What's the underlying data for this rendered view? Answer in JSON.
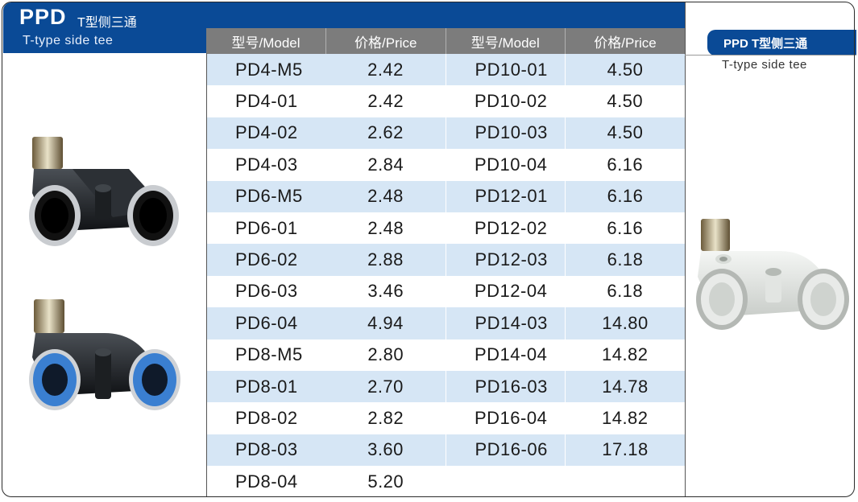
{
  "header": {
    "brand": "PPD",
    "brand_cn": "T型侧三通",
    "subtitle": "T-type side tee"
  },
  "table": {
    "headers": [
      "型号/Model",
      "价格/Price",
      "型号/Model",
      "价格/Price"
    ],
    "rows": [
      [
        "PD4-M5",
        "2.42",
        "PD10-01",
        "4.50"
      ],
      [
        "PD4-01",
        "2.42",
        "PD10-02",
        "4.50"
      ],
      [
        "PD4-02",
        "2.62",
        "PD10-03",
        "4.50"
      ],
      [
        "PD4-03",
        "2.84",
        "PD10-04",
        "6.16"
      ],
      [
        "PD6-M5",
        "2.48",
        "PD12-01",
        "6.16"
      ],
      [
        "PD6-01",
        "2.48",
        "PD12-02",
        "6.16"
      ],
      [
        "PD6-02",
        "2.88",
        "PD12-03",
        "6.18"
      ],
      [
        "PD6-03",
        "3.46",
        "PD12-04",
        "6.18"
      ],
      [
        "PD6-04",
        "4.94",
        "PD14-03",
        "14.80"
      ],
      [
        "PD8-M5",
        "2.80",
        "PD14-04",
        "14.82"
      ],
      [
        "PD8-01",
        "2.70",
        "PD16-03",
        "14.78"
      ],
      [
        "PD8-02",
        "2.82",
        "PD16-04",
        "14.82"
      ],
      [
        "PD8-03",
        "3.60",
        "PD16-06",
        "17.18"
      ],
      [
        "PD8-04",
        "5.20",
        "",
        ""
      ]
    ]
  },
  "side": {
    "title": "PPD T型侧三通",
    "subtitle": "T-type side tee"
  },
  "colors": {
    "brand_blue": "#0a4a96",
    "row_stripe": "#d6e6f5",
    "header_gray": "#7c7c7c"
  }
}
